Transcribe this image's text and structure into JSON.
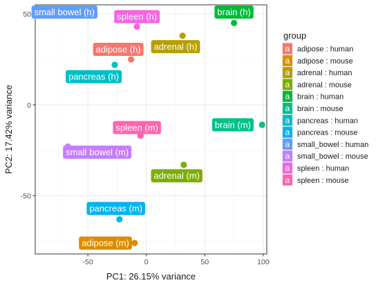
{
  "chart_data": {
    "type": "scatter",
    "xlabel": "PC1: 26.15% variance",
    "ylabel": "PC2: 17.42% variance",
    "xlim": [
      -95,
      103
    ],
    "ylim": [
      -82,
      55
    ],
    "xticks": [
      -50,
      0,
      50,
      100
    ],
    "yticks": [
      50,
      0,
      -50
    ],
    "grid": true,
    "legend": {
      "title": "group",
      "position": "right",
      "key_glyph": "a"
    },
    "groups": [
      {
        "name": "adipose : human",
        "color": "#F8766D"
      },
      {
        "name": "adipose : mouse",
        "color": "#DE8C00"
      },
      {
        "name": "adrenal : human",
        "color": "#B79F00"
      },
      {
        "name": "adrenal : mouse",
        "color": "#7CAE00"
      },
      {
        "name": "brain : human",
        "color": "#00BA38"
      },
      {
        "name": "brain : mouse",
        "color": "#00C08B"
      },
      {
        "name": "pancreas : human",
        "color": "#00BFC4"
      },
      {
        "name": "pancreas : mouse",
        "color": "#00B4F0"
      },
      {
        "name": "small_bowel : human",
        "color": "#619CFF"
      },
      {
        "name": "small_bowel : mouse",
        "color": "#C77CFF"
      },
      {
        "name": "spleen : human",
        "color": "#F564E3"
      },
      {
        "name": "spleen : mouse",
        "color": "#FF64B0"
      }
    ],
    "points": [
      {
        "label": "adipose (h)",
        "group": 0,
        "x": -13,
        "y": 25,
        "lx": -24,
        "ly": 30.5
      },
      {
        "label": "adipose (m)",
        "group": 1,
        "x": -10,
        "y": -76,
        "lx": -35,
        "ly": -76
      },
      {
        "label": "adrenal (h)",
        "group": 2,
        "x": 31,
        "y": 38,
        "lx": 25,
        "ly": 32
      },
      {
        "label": "adrenal (m)",
        "group": 3,
        "x": 32,
        "y": -33,
        "lx": 26,
        "ly": -39
      },
      {
        "label": "brain (h)",
        "group": 4,
        "x": 75,
        "y": 45,
        "lx": 75,
        "ly": 51
      },
      {
        "label": "brain (m)",
        "group": 5,
        "x": 99,
        "y": -11,
        "lx": 74,
        "ly": -11
      },
      {
        "label": "pancreas (h)",
        "group": 6,
        "x": -27,
        "y": 22,
        "lx": -45,
        "ly": 15.5
      },
      {
        "label": "pancreas (m)",
        "group": 7,
        "x": -23,
        "y": -63,
        "lx": -26,
        "ly": -57
      },
      {
        "label": "small bowel (h)",
        "group": 8,
        "x": -70,
        "y": 50,
        "lx": -70,
        "ly": 51
      },
      {
        "label": "small bowel (m)",
        "group": 9,
        "x": -67,
        "y": -23,
        "lx": -42,
        "ly": -26
      },
      {
        "label": "spleen (h)",
        "group": 10,
        "x": -8,
        "y": 43,
        "lx": -8,
        "ly": 48.5
      },
      {
        "label": "spleen (m)",
        "group": 11,
        "x": -5,
        "y": -17,
        "lx": -8,
        "ly": -12.5
      }
    ]
  }
}
